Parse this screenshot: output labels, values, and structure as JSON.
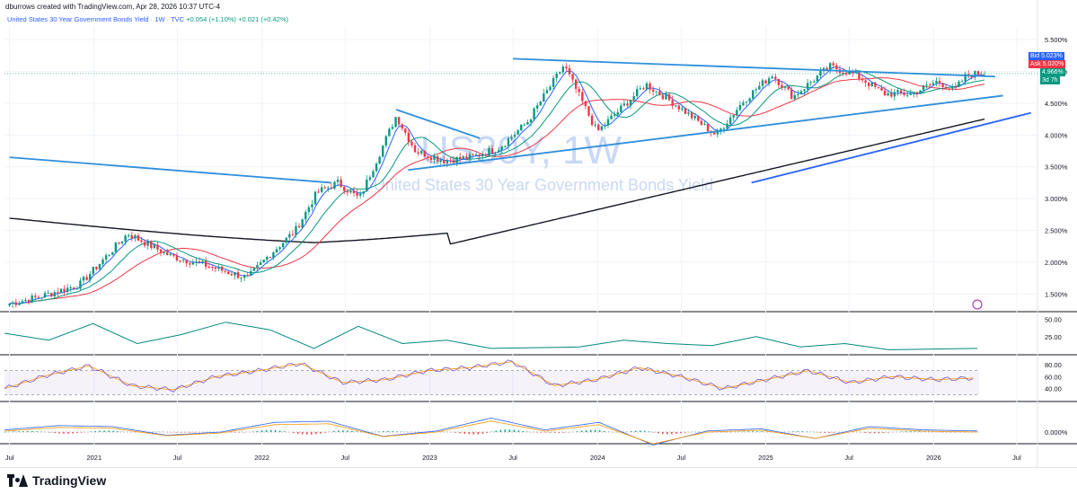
{
  "header": {
    "caption": "dburrows created with TradingView.com, Apr 28, 2026 10:37 UTC-4",
    "symbol_line": "United States 30 Year Government Bonds Yield · 1W · TVC",
    "change_1": "+0.054 (+1.10%)",
    "change_2": "+0.021 (+0.42%)"
  },
  "watermark": {
    "symbol": "US30Y, 1W",
    "name": "United States 30 Year Government Bonds Yield"
  },
  "price_labels": {
    "bid_label": "Bid",
    "bid_value": "5.023%",
    "ask_label": "Ask",
    "ask_value": "5.020%",
    "last_value": "4.966%",
    "countdown": "3d 7h"
  },
  "brand": "TradingView",
  "colors": {
    "up": "#089981",
    "down": "#f23645",
    "trendline": "#2f8fdc",
    "ma_blue": "#2962ff",
    "ma_green": "#089981",
    "ma_red": "#f23645",
    "ma_black": "#131722",
    "rsi": "#7e57c2",
    "rsi_ma": "#ff9800"
  },
  "chart_data": [
    {
      "type": "candlestick",
      "title": "United States 30 Year Government Bonds Yield",
      "interval": "1W",
      "y_unit": "%",
      "y_ticks": [
        "5.500%",
        "5.000%",
        "4.500%",
        "4.000%",
        "3.500%",
        "3.000%",
        "2.500%",
        "2.000%",
        "1.500%"
      ],
      "x_ticks": [
        "Jul",
        "2021",
        "Jul",
        "2022",
        "Jul",
        "2023",
        "Jul",
        "2024",
        "Jul",
        "2025",
        "Jul",
        "2026",
        "Jul"
      ],
      "ylim": [
        1.25,
        5.7
      ],
      "last_value": 4.966,
      "keypoints": [
        {
          "date": "2020-07-01",
          "close": 1.35
        },
        {
          "date": "2020-09-01",
          "close": 1.45
        },
        {
          "date": "2020-12-01",
          "close": 1.65
        },
        {
          "date": "2021-03-15",
          "close": 2.45
        },
        {
          "date": "2021-06-15",
          "close": 2.1
        },
        {
          "date": "2021-09-01",
          "close": 1.95
        },
        {
          "date": "2021-12-01",
          "close": 1.75
        },
        {
          "date": "2022-01-15",
          "close": 2.1
        },
        {
          "date": "2022-03-15",
          "close": 2.5
        },
        {
          "date": "2022-05-01",
          "close": 3.1
        },
        {
          "date": "2022-06-15",
          "close": 3.25
        },
        {
          "date": "2022-08-01",
          "close": 3.0
        },
        {
          "date": "2022-10-20",
          "close": 4.3
        },
        {
          "date": "2022-12-01",
          "close": 3.75
        },
        {
          "date": "2023-02-01",
          "close": 3.6
        },
        {
          "date": "2023-04-01",
          "close": 3.65
        },
        {
          "date": "2023-06-01",
          "close": 3.8
        },
        {
          "date": "2023-08-01",
          "close": 4.2
        },
        {
          "date": "2023-10-20",
          "close": 5.1
        },
        {
          "date": "2023-12-31",
          "close": 4.05
        },
        {
          "date": "2024-04-15",
          "close": 4.8
        },
        {
          "date": "2024-06-15",
          "close": 4.5
        },
        {
          "date": "2024-09-15",
          "close": 4.0
        },
        {
          "date": "2024-11-15",
          "close": 4.55
        },
        {
          "date": "2025-01-15",
          "close": 4.95
        },
        {
          "date": "2025-03-01",
          "close": 4.6
        },
        {
          "date": "2025-05-20",
          "close": 5.08
        },
        {
          "date": "2025-07-15",
          "close": 4.95
        },
        {
          "date": "2025-09-15",
          "close": 4.65
        },
        {
          "date": "2025-11-15",
          "close": 4.65
        },
        {
          "date": "2026-01-10",
          "close": 4.85
        },
        {
          "date": "2026-02-15",
          "close": 4.7
        },
        {
          "date": "2026-03-15",
          "close": 4.95
        },
        {
          "date": "2026-04-26",
          "close": 4.97
        }
      ],
      "trendlines": [
        {
          "from": {
            "date": "2020-07-01",
            "value": 3.65
          },
          "to": {
            "date": "2022-06-01",
            "value": 3.25
          }
        },
        {
          "from": {
            "date": "2022-10-20",
            "value": 4.4
          },
          "to": {
            "date": "2023-04-20",
            "value": 3.95
          }
        },
        {
          "from": {
            "date": "2022-11-15",
            "value": 3.45
          },
          "to": {
            "date": "2026-06-01",
            "value": 4.62
          }
        },
        {
          "from": {
            "date": "2023-07-01",
            "value": 5.2
          },
          "to": {
            "date": "2026-05-15",
            "value": 4.92
          }
        },
        {
          "from": {
            "date": "2024-12-01",
            "value": 3.25
          },
          "to": {
            "date": "2026-08-01",
            "value": 4.35
          }
        }
      ]
    },
    {
      "type": "line",
      "panel": "indicator-1",
      "y_ticks": [
        "50.00",
        "25.00"
      ],
      "ylim": [
        0,
        60
      ],
      "series": [
        {
          "values": [
            30,
            20,
            44,
            15,
            28,
            46,
            35,
            8,
            40,
            15,
            20,
            8,
            9,
            10,
            20,
            15,
            12,
            25,
            10,
            15,
            6,
            7,
            8
          ]
        }
      ]
    },
    {
      "type": "line",
      "panel": "rsi",
      "y_ticks": [
        "80.00",
        "60.00",
        "40.00"
      ],
      "ylim": [
        20,
        95
      ],
      "bands": [
        30,
        70
      ],
      "series": [
        {
          "values": [
            40,
            62,
            78,
            45,
            38,
            60,
            70,
            82,
            50,
            55,
            70,
            75,
            85,
            45,
            55,
            75,
            60,
            40,
            55,
            70,
            50,
            60,
            55,
            58
          ]
        }
      ]
    },
    {
      "type": "bar",
      "panel": "macd",
      "y_ticks": [
        "0.000%"
      ],
      "series": [
        {
          "values": [
            0.02,
            0.06,
            0.05,
            -0.03,
            0.0,
            0.09,
            0.1,
            -0.04,
            0.01,
            0.13,
            0.02,
            0.09,
            -0.12,
            0.01,
            0.03,
            -0.06,
            0.05,
            0.02,
            0.01
          ]
        }
      ]
    }
  ]
}
